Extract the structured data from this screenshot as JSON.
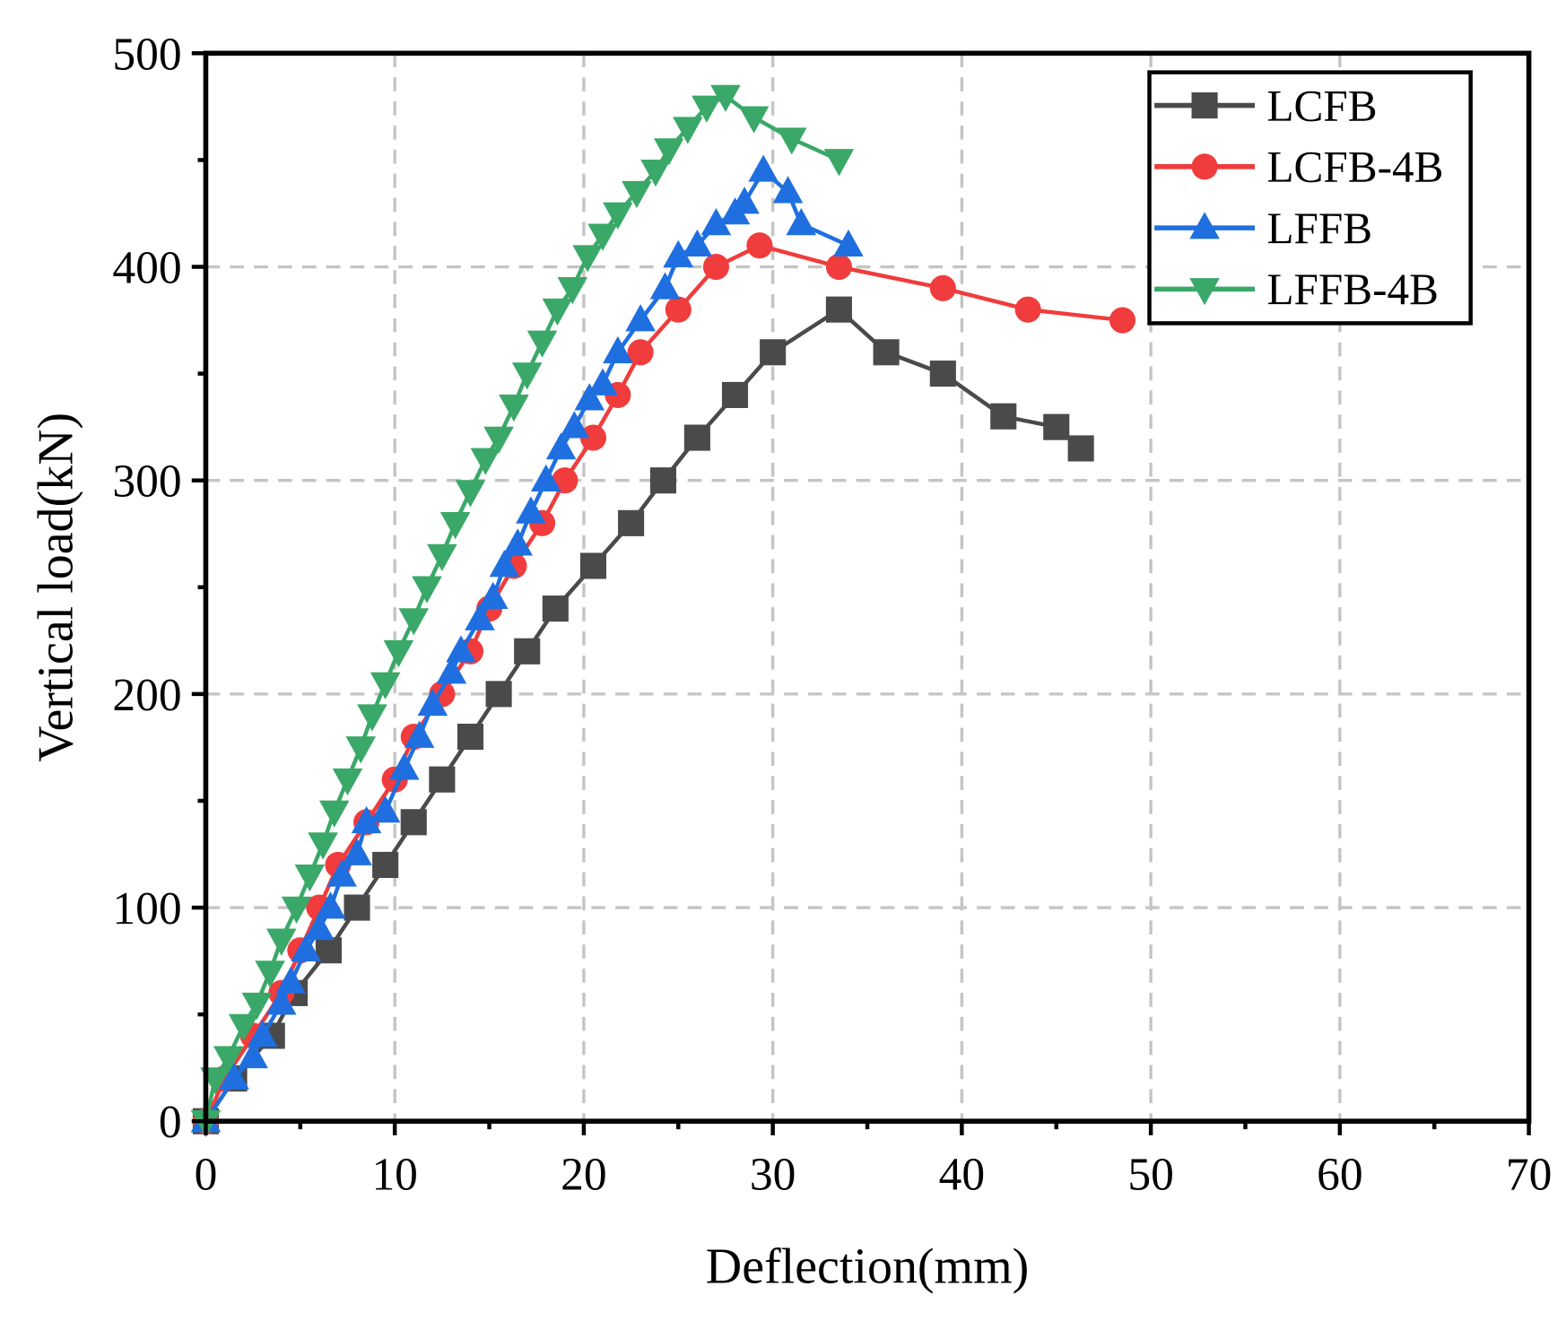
{
  "chart_data": {
    "type": "line",
    "title": "",
    "xlabel": "Deflection(mm)",
    "ylabel": "Vertical load(kN)",
    "xlim": [
      0,
      70
    ],
    "ylim": [
      0,
      500
    ],
    "xticks": [
      "0",
      "10",
      "20",
      "30",
      "40",
      "50",
      "60",
      "70"
    ],
    "yticks": [
      "0",
      "100",
      "200",
      "300",
      "400",
      "500"
    ],
    "grid": true,
    "legend_position": "top-right",
    "series": [
      {
        "name": "LCFB",
        "color": "#4a4a4a",
        "marker": "square",
        "points": [
          [
            0,
            0
          ],
          [
            1.5,
            20
          ],
          [
            3.5,
            40
          ],
          [
            4.7,
            60
          ],
          [
            6.5,
            80
          ],
          [
            8,
            100
          ],
          [
            9.5,
            120
          ],
          [
            11,
            140
          ],
          [
            12.5,
            160
          ],
          [
            14,
            180
          ],
          [
            15.5,
            200
          ],
          [
            17,
            220
          ],
          [
            18.5,
            240
          ],
          [
            20.5,
            260
          ],
          [
            22.5,
            280
          ],
          [
            24.2,
            300
          ],
          [
            26,
            320
          ],
          [
            28,
            340
          ],
          [
            30,
            360
          ],
          [
            33.5,
            380
          ],
          [
            36,
            360
          ],
          [
            39,
            350
          ],
          [
            42.2,
            330
          ],
          [
            45,
            325
          ],
          [
            46.3,
            315
          ]
        ]
      },
      {
        "name": "LCFB-4B",
        "color": "#f03c3c",
        "marker": "circle",
        "points": [
          [
            0,
            0
          ],
          [
            1,
            20
          ],
          [
            2.5,
            40
          ],
          [
            4,
            60
          ],
          [
            5,
            80
          ],
          [
            6,
            100
          ],
          [
            7,
            120
          ],
          [
            8.5,
            140
          ],
          [
            10,
            160
          ],
          [
            11,
            180
          ],
          [
            12.5,
            200
          ],
          [
            14,
            220
          ],
          [
            15,
            240
          ],
          [
            16.3,
            260
          ],
          [
            17.8,
            280
          ],
          [
            19,
            300
          ],
          [
            20.5,
            320
          ],
          [
            21.8,
            340
          ],
          [
            23,
            360
          ],
          [
            25,
            380
          ],
          [
            27,
            400
          ],
          [
            29.3,
            410
          ],
          [
            33.5,
            400
          ],
          [
            39,
            390
          ],
          [
            43.5,
            380
          ],
          [
            48.5,
            375
          ]
        ]
      },
      {
        "name": "LFFB",
        "color": "#1f6fe0",
        "marker": "triangle-up",
        "points": [
          [
            0,
            0
          ],
          [
            1.5,
            20
          ],
          [
            2.5,
            30
          ],
          [
            3,
            40
          ],
          [
            4,
            55
          ],
          [
            4.5,
            65
          ],
          [
            5.3,
            80
          ],
          [
            6,
            90
          ],
          [
            6.6,
            100
          ],
          [
            7.2,
            115
          ],
          [
            8,
            125
          ],
          [
            8.5,
            140
          ],
          [
            9.5,
            145
          ],
          [
            10.5,
            165
          ],
          [
            11.3,
            180
          ],
          [
            12,
            195
          ],
          [
            13,
            210
          ],
          [
            13.5,
            220
          ],
          [
            14.5,
            235
          ],
          [
            15.2,
            245
          ],
          [
            15.8,
            260
          ],
          [
            16.5,
            270
          ],
          [
            17.2,
            285
          ],
          [
            18,
            300
          ],
          [
            18.8,
            315
          ],
          [
            19.5,
            325
          ],
          [
            20.3,
            338
          ],
          [
            21,
            345
          ],
          [
            21.8,
            360
          ],
          [
            23,
            375
          ],
          [
            24.3,
            390
          ],
          [
            25,
            405
          ],
          [
            26,
            410
          ],
          [
            27,
            420
          ],
          [
            28,
            425
          ],
          [
            28.5,
            430
          ],
          [
            29.5,
            445
          ],
          [
            30.8,
            435
          ],
          [
            31.5,
            420
          ],
          [
            34,
            410
          ]
        ]
      },
      {
        "name": "LFFB-4B",
        "color": "#3aa868",
        "marker": "triangle-down",
        "points": [
          [
            0,
            0
          ],
          [
            0.5,
            20
          ],
          [
            1.2,
            30
          ],
          [
            2,
            45
          ],
          [
            2.7,
            55
          ],
          [
            3.4,
            70
          ],
          [
            4,
            85
          ],
          [
            4.8,
            100
          ],
          [
            5.5,
            115
          ],
          [
            6.2,
            130
          ],
          [
            6.8,
            145
          ],
          [
            7.5,
            160
          ],
          [
            8.2,
            175
          ],
          [
            8.8,
            190
          ],
          [
            9.5,
            205
          ],
          [
            10.2,
            220
          ],
          [
            11,
            235
          ],
          [
            11.7,
            250
          ],
          [
            12.5,
            265
          ],
          [
            13.2,
            280
          ],
          [
            14,
            295
          ],
          [
            14.8,
            310
          ],
          [
            15.5,
            320
          ],
          [
            16.3,
            335
          ],
          [
            17,
            350
          ],
          [
            17.8,
            365
          ],
          [
            18.6,
            380
          ],
          [
            19.4,
            390
          ],
          [
            20.2,
            405
          ],
          [
            21,
            415
          ],
          [
            21.8,
            425
          ],
          [
            22.8,
            435
          ],
          [
            23.8,
            445
          ],
          [
            24.5,
            455
          ],
          [
            25.5,
            465
          ],
          [
            26.5,
            475
          ],
          [
            27.5,
            480
          ],
          [
            29,
            470
          ],
          [
            31,
            460
          ],
          [
            33.5,
            450
          ]
        ]
      }
    ]
  }
}
